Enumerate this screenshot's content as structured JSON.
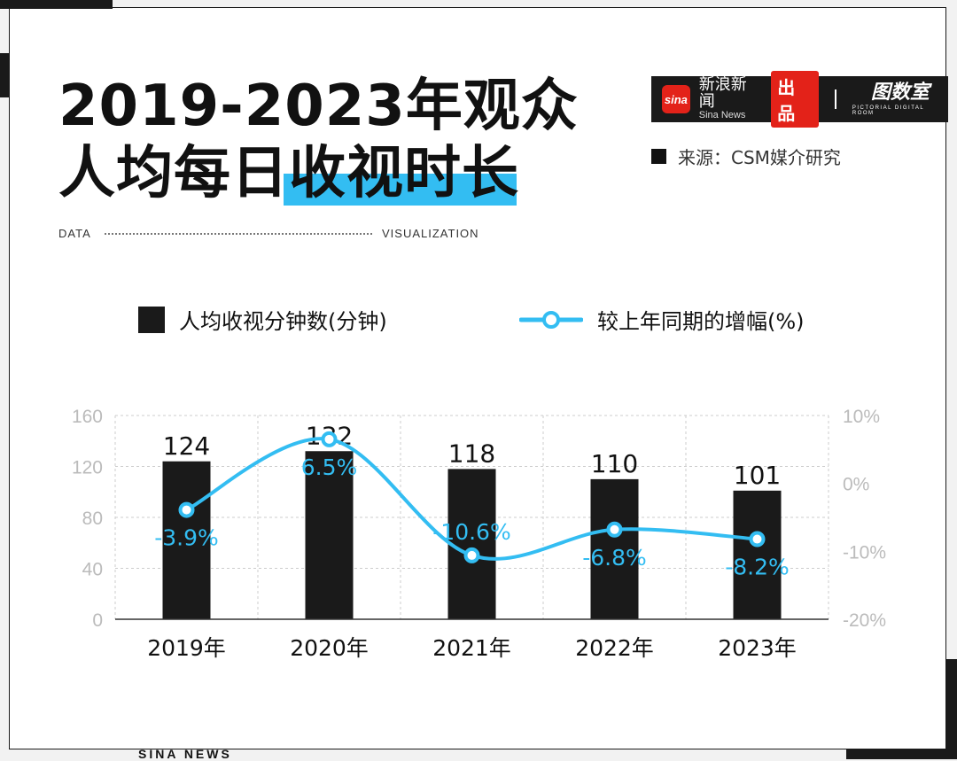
{
  "header": {
    "title_line1": "2019-2023年观众",
    "title_line2_plain": "人均每日",
    "title_line2_highlight": "收视时长",
    "tag_left": "DATA",
    "tag_right": "VISUALIZATION"
  },
  "brand": {
    "logo_text": "sina",
    "name_cn": "新浪新闻",
    "name_en": "Sina News",
    "chupin": "出品",
    "room_cn": "图数室",
    "room_en": "PICTORIAL DIGITAL ROOM"
  },
  "source": {
    "text": "来源：CSM媒介研究"
  },
  "legend": {
    "bar_label": "人均收视分钟数(分钟)",
    "line_label": "较上年同期的增幅(%)"
  },
  "footer": {
    "text": "SINA NEWS"
  },
  "colors": {
    "bar": "#1a1a1a",
    "line": "#33bdf2",
    "highlight": "#33bdf2",
    "brand_red": "#e32219"
  },
  "chart_data": {
    "type": "bar+line",
    "categories": [
      "2019年",
      "2020年",
      "2021年",
      "2022年",
      "2023年"
    ],
    "series": [
      {
        "values": [
          124,
          132,
          118,
          110,
          101
        ],
        "value_labels": [
          "124",
          "132",
          "118",
          "110",
          "101"
        ],
        "axis": "left"
      },
      {
        "values": [
          -3.9,
          6.5,
          -10.6,
          -6.8,
          -8.2
        ],
        "value_labels": [
          "-3.9%",
          "6.5%",
          "-10.6%",
          "-6.8%",
          "-8.2%"
        ],
        "axis": "right"
      }
    ],
    "left_axis": {
      "ylim": [
        0,
        160
      ],
      "ticks": [
        0,
        40,
        80,
        120,
        160
      ],
      "tick_labels": [
        "0",
        "40",
        "80",
        "120",
        "160"
      ]
    },
    "right_axis": {
      "ylim": [
        -20,
        10
      ],
      "ticks": [
        -20,
        -10,
        0,
        10
      ],
      "tick_labels": [
        "-20%",
        "-10%",
        "0%",
        "10%"
      ]
    },
    "grid": "dashed",
    "legend_position": "top"
  }
}
